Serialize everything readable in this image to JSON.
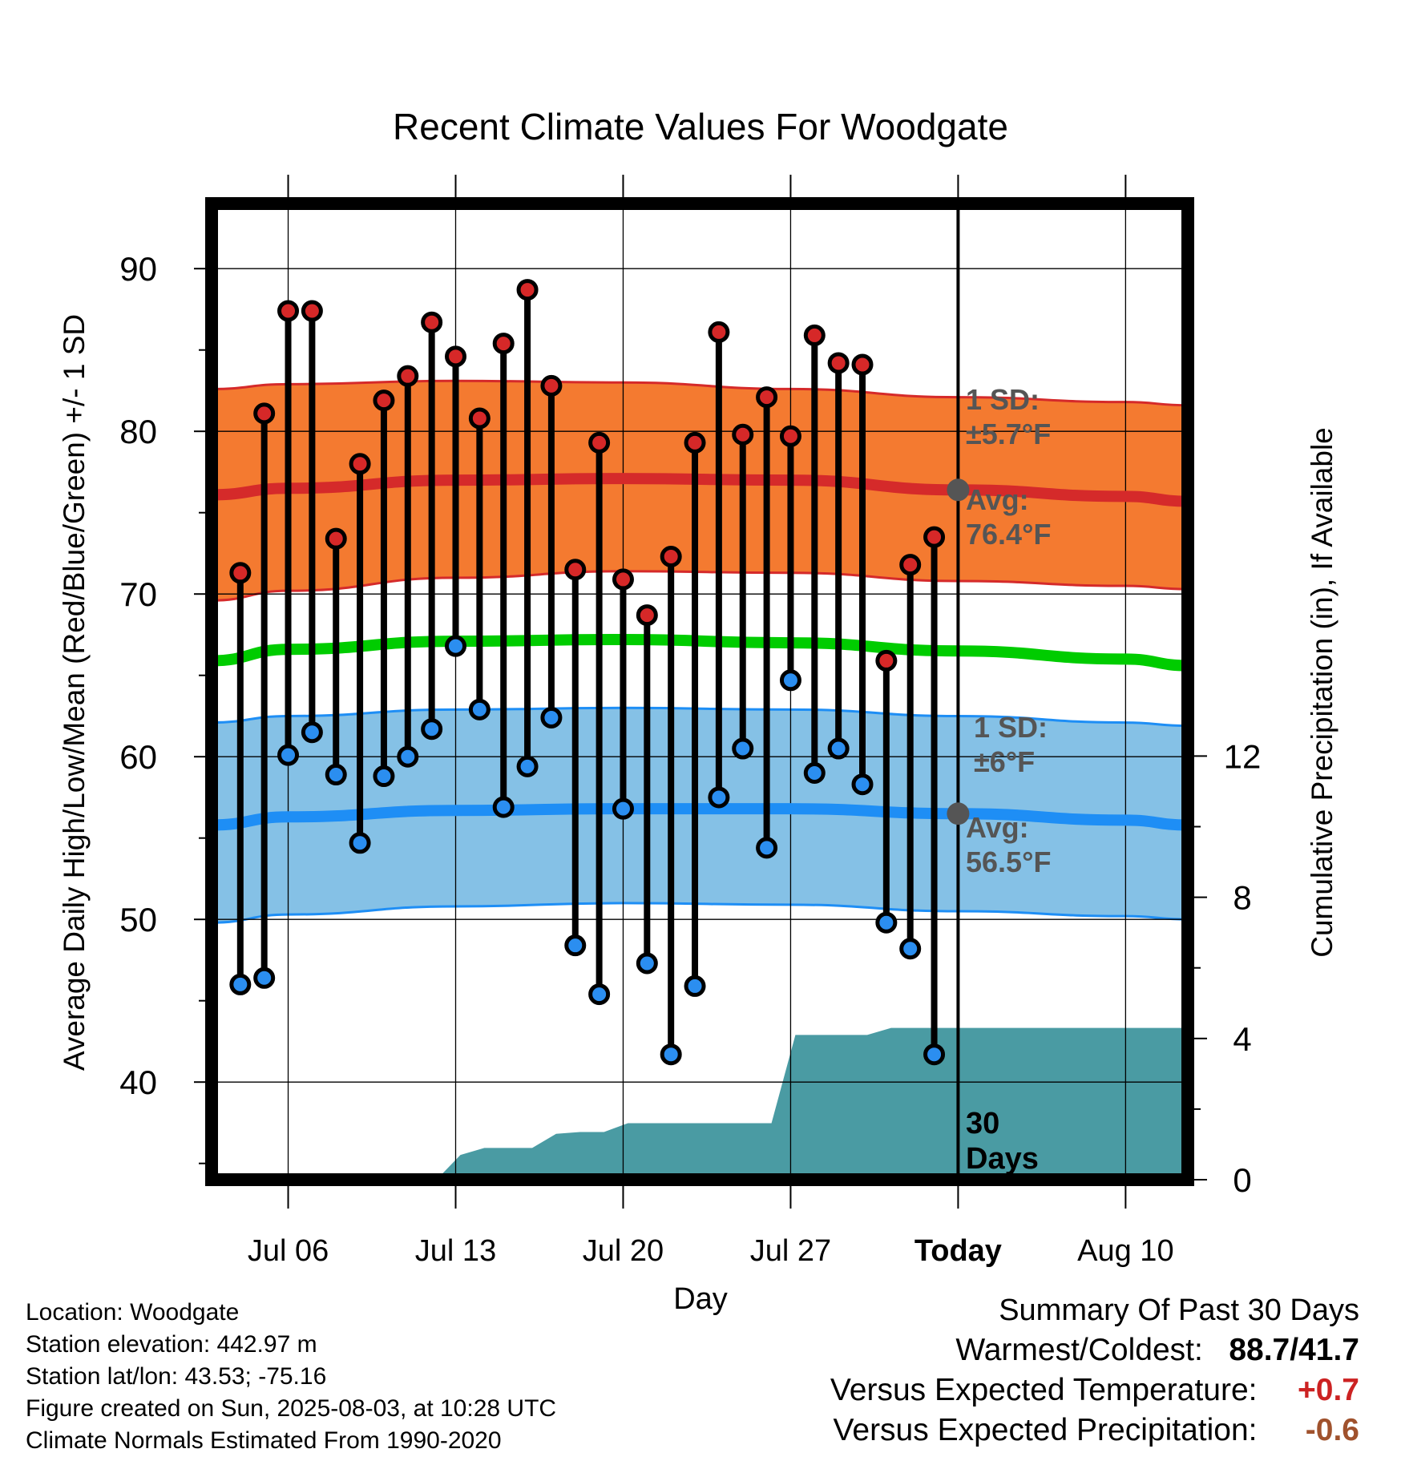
{
  "chart_data": {
    "type": "line",
    "title": "Recent Climate Values For Woodgate",
    "xlabel": "Day",
    "ylabel_left": "Average Daily High/Low/Mean (Red/Blue/Green) +/- 1 SD",
    "ylabel_right": "Cumulative Precipitation (in), If Available",
    "ylim_left": [
      34,
      94
    ],
    "ylim_right": [
      0,
      27.65
    ],
    "left_ticks": [
      40,
      50,
      60,
      70,
      80,
      90
    ],
    "right_ticks": [
      0,
      4,
      8,
      12
    ],
    "x_tick_labels": [
      "Jul 06",
      "Jul 13",
      "Jul 20",
      "Jul 27",
      "Today",
      "Aug 10"
    ],
    "x_tick_days": [
      6,
      13,
      20,
      27,
      34,
      41
    ],
    "x_range_days": [
      2.8,
      43.6
    ],
    "today_day": 34,
    "grid": true,
    "days": [
      4,
      5,
      6,
      7,
      8,
      9,
      10,
      11,
      12,
      13,
      14,
      15,
      16,
      17,
      18,
      19,
      20,
      21,
      22,
      23,
      24,
      25,
      26,
      27,
      28,
      29,
      30,
      31,
      32,
      33
    ],
    "daily_high": [
      71.3,
      81.1,
      87.4,
      87.4,
      73.4,
      78.0,
      81.9,
      83.4,
      86.7,
      84.6,
      80.8,
      85.4,
      88.7,
      82.8,
      71.5,
      79.3,
      70.9,
      68.7,
      72.3,
      79.3,
      86.1,
      79.8,
      82.1,
      79.7,
      85.9,
      84.2,
      84.1,
      65.9,
      71.8,
      73.5
    ],
    "daily_low": [
      46.0,
      46.4,
      60.1,
      61.5,
      58.9,
      54.7,
      58.8,
      60.0,
      61.7,
      66.8,
      62.9,
      56.9,
      59.4,
      62.4,
      48.4,
      45.4,
      56.8,
      47.3,
      41.7,
      45.9,
      57.5,
      60.5,
      54.4,
      64.7,
      59.0,
      60.5,
      58.3,
      49.8,
      48.2,
      41.7
    ],
    "normals": {
      "days": [
        2.8,
        6,
        13,
        20,
        27,
        34,
        41,
        43.6
      ],
      "high_avg": [
        76.1,
        76.5,
        77.0,
        77.1,
        77.0,
        76.4,
        76.0,
        75.7
      ],
      "high_upper": [
        82.6,
        82.9,
        83.1,
        83.0,
        82.6,
        82.1,
        81.8,
        81.6
      ],
      "high_lower": [
        69.6,
        70.2,
        71.0,
        71.4,
        71.3,
        70.8,
        70.5,
        70.3
      ],
      "mean_avg": [
        65.9,
        66.6,
        67.1,
        67.2,
        67.0,
        66.5,
        66.0,
        65.6
      ],
      "low_avg": [
        55.8,
        56.3,
        56.7,
        56.8,
        56.8,
        56.5,
        56.1,
        55.8
      ],
      "low_upper": [
        62.1,
        62.5,
        62.9,
        63.0,
        62.9,
        62.5,
        62.1,
        61.9
      ],
      "low_lower": [
        49.8,
        50.3,
        50.8,
        51.0,
        50.9,
        50.5,
        50.2,
        50.0
      ]
    },
    "precip_cumulative": {
      "days": [
        2.8,
        12.2,
        13.2,
        14.2,
        15.2,
        16.2,
        17.2,
        18.2,
        19.2,
        20.2,
        21.2,
        22.2,
        23.2,
        24.2,
        25.2,
        26.2,
        27.2,
        28.2,
        29.2,
        30.2,
        31.2,
        32.2,
        33.2,
        34.2,
        43.6
      ],
      "values": [
        0,
        0,
        0.7,
        0.9,
        0.9,
        0.9,
        1.3,
        1.35,
        1.35,
        1.6,
        1.6,
        1.6,
        1.6,
        1.6,
        1.6,
        1.6,
        4.1,
        4.1,
        4.1,
        4.1,
        4.3,
        4.3,
        4.3,
        4.3,
        4.3
      ]
    },
    "annotations": {
      "high_sd_label": "1 SD:",
      "high_sd_value": "±5.7°F",
      "high_avg_label": "Avg:",
      "high_avg_value": "76.4°F",
      "high_avg_at_today": 76.4,
      "low_sd_label": "1 SD:",
      "low_sd_value": "±6°F",
      "low_avg_label": "Avg:",
      "low_avg_value": "56.5°F",
      "low_avg_at_today": 56.5,
      "window_line1": "30",
      "window_line2": "Days"
    },
    "colors": {
      "high_band": "#f47a30",
      "high_line": "#d52a2a",
      "low_band": "#85c1e6",
      "low_line": "#1e8ef5",
      "mean_line": "#00cc00",
      "precip": "#4a9ba3",
      "high_marker": "#d62828",
      "low_marker": "#2b8ef0",
      "annotation": "#555555"
    }
  },
  "metadata": {
    "location": "Location: Woodgate",
    "elevation": "Station elevation: 442.97 m",
    "latlon": "Station lat/lon: 43.53; -75.16",
    "created": "Figure created on Sun, 2025-08-03, at 10:28 UTC",
    "normals": "Climate Normals Estimated From 1990-2020"
  },
  "summary": {
    "title": "Summary Of Past 30 Days",
    "warmest_label": "Warmest/Coldest:",
    "warmest_value": "88.7/41.7",
    "temp_label": "Versus Expected Temperature:",
    "temp_value": "+0.7",
    "temp_color": "#cc2222",
    "precip_label": "Versus Expected Precipitation:",
    "precip_value": "-0.6",
    "precip_color": "#a0522d"
  }
}
